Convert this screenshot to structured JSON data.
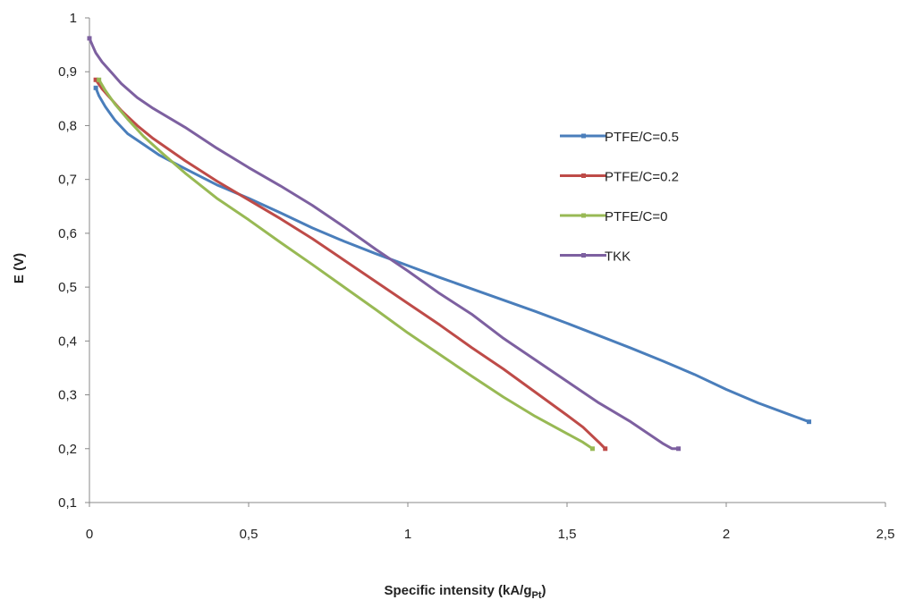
{
  "chart_data": {
    "type": "line",
    "xlabel": "Specific intensity (kA/g",
    "xlabel_sub": "Pt",
    "xlabel_end": ")",
    "ylabel": "E (V)",
    "xlim": [
      0,
      2.5
    ],
    "ylim": [
      0.1,
      1
    ],
    "x_ticks": [
      "0",
      "0,5",
      "1",
      "1,5",
      "2",
      "2,5"
    ],
    "y_ticks": [
      "0,1",
      "0,2",
      "0,3",
      "0,4",
      "0,5",
      "0,6",
      "0,7",
      "0,8",
      "0,9",
      "1"
    ],
    "grid": false,
    "legend_position": "right",
    "series": [
      {
        "name": "PTFE/C=0.5",
        "color": "#4a7ebb",
        "x": [
          0.02,
          0.03,
          0.05,
          0.08,
          0.12,
          0.17,
          0.22,
          0.3,
          0.4,
          0.5,
          0.6,
          0.7,
          0.8,
          0.9,
          1.0,
          1.1,
          1.2,
          1.3,
          1.4,
          1.5,
          1.6,
          1.7,
          1.8,
          1.9,
          2.0,
          2.1,
          2.2,
          2.26
        ],
        "y": [
          0.87,
          0.855,
          0.835,
          0.81,
          0.785,
          0.765,
          0.745,
          0.72,
          0.69,
          0.665,
          0.638,
          0.61,
          0.585,
          0.562,
          0.54,
          0.518,
          0.497,
          0.476,
          0.455,
          0.433,
          0.41,
          0.387,
          0.363,
          0.338,
          0.31,
          0.285,
          0.263,
          0.25
        ]
      },
      {
        "name": "PTFE/C=0.2",
        "color": "#be4b48",
        "x": [
          0.02,
          0.04,
          0.07,
          0.1,
          0.15,
          0.2,
          0.3,
          0.4,
          0.5,
          0.6,
          0.7,
          0.8,
          0.9,
          1.0,
          1.1,
          1.2,
          1.3,
          1.4,
          1.5,
          1.55,
          1.6,
          1.62
        ],
        "y": [
          0.885,
          0.868,
          0.848,
          0.828,
          0.8,
          0.776,
          0.735,
          0.697,
          0.662,
          0.627,
          0.59,
          0.55,
          0.51,
          0.47,
          0.43,
          0.388,
          0.348,
          0.305,
          0.262,
          0.24,
          0.212,
          0.2
        ]
      },
      {
        "name": "PTFE/C=0",
        "color": "#98b954",
        "x": [
          0.03,
          0.05,
          0.08,
          0.12,
          0.17,
          0.23,
          0.3,
          0.4,
          0.5,
          0.6,
          0.7,
          0.8,
          0.9,
          1.0,
          1.1,
          1.2,
          1.3,
          1.4,
          1.5,
          1.55,
          1.58
        ],
        "y": [
          0.885,
          0.865,
          0.84,
          0.812,
          0.78,
          0.748,
          0.712,
          0.665,
          0.625,
          0.583,
          0.542,
          0.5,
          0.458,
          0.415,
          0.375,
          0.335,
          0.296,
          0.26,
          0.228,
          0.212,
          0.2
        ]
      },
      {
        "name": "TKK",
        "color": "#7d60a0",
        "x": [
          0.0,
          0.01,
          0.02,
          0.04,
          0.07,
          0.1,
          0.15,
          0.2,
          0.3,
          0.4,
          0.5,
          0.6,
          0.7,
          0.8,
          0.9,
          1.0,
          1.1,
          1.2,
          1.3,
          1.4,
          1.5,
          1.6,
          1.7,
          1.75,
          1.8,
          1.83,
          1.85
        ],
        "y": [
          0.962,
          0.948,
          0.935,
          0.918,
          0.898,
          0.878,
          0.852,
          0.832,
          0.797,
          0.758,
          0.722,
          0.688,
          0.652,
          0.612,
          0.57,
          0.53,
          0.488,
          0.45,
          0.405,
          0.365,
          0.325,
          0.285,
          0.25,
          0.23,
          0.21,
          0.2,
          0.2
        ]
      }
    ]
  }
}
